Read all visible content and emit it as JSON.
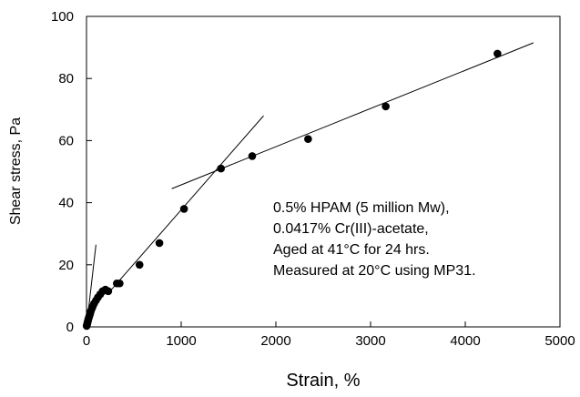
{
  "chart_data": {
    "type": "scatter",
    "xlabel": "Strain, %",
    "ylabel": "Shear stress, Pa",
    "xlim": [
      0,
      5000
    ],
    "ylim": [
      0,
      100
    ],
    "x_ticks": [
      "0",
      "1000",
      "2000",
      "3000",
      "4000",
      "5000"
    ],
    "y_ticks": [
      "0",
      "20",
      "40",
      "60",
      "80",
      "100"
    ],
    "grid": false,
    "legend": "none",
    "series": [
      {
        "marker_color": "#000000",
        "points": [
          {
            "x": 2,
            "y": 0.3
          },
          {
            "x": 5,
            "y": 0.7
          },
          {
            "x": 8,
            "y": 1.0
          },
          {
            "x": 12,
            "y": 1.5
          },
          {
            "x": 16,
            "y": 2.0
          },
          {
            "x": 20,
            "y": 2.5
          },
          {
            "x": 25,
            "y": 3.0
          },
          {
            "x": 30,
            "y": 3.5
          },
          {
            "x": 38,
            "y": 4.2
          },
          {
            "x": 45,
            "y": 5.0
          },
          {
            "x": 55,
            "y": 5.8
          },
          {
            "x": 65,
            "y": 6.5
          },
          {
            "x": 80,
            "y": 7.5
          },
          {
            "x": 100,
            "y": 8.5
          },
          {
            "x": 120,
            "y": 9.5
          },
          {
            "x": 145,
            "y": 10.5
          },
          {
            "x": 170,
            "y": 11.5
          },
          {
            "x": 200,
            "y": 12.0
          },
          {
            "x": 230,
            "y": 11.5
          },
          {
            "x": 320,
            "y": 14.0
          },
          {
            "x": 350,
            "y": 14.0
          },
          {
            "x": 560,
            "y": 20.0
          },
          {
            "x": 770,
            "y": 27.0
          },
          {
            "x": 1030,
            "y": 38.0
          },
          {
            "x": 1420,
            "y": 51.0
          },
          {
            "x": 1750,
            "y": 55.0
          },
          {
            "x": 2340,
            "y": 60.5
          },
          {
            "x": 3160,
            "y": 71.0
          },
          {
            "x": 4340,
            "y": 88.0
          }
        ]
      }
    ],
    "trend_lines": [
      {
        "x1": 0,
        "y1": 0,
        "x2": 100,
        "y2": 26.5
      },
      {
        "x1": 220,
        "y1": 10.5,
        "x2": 1870,
        "y2": 68.0
      },
      {
        "x1": 900,
        "y1": 44.5,
        "x2": 4720,
        "y2": 91.5
      }
    ],
    "annotation": [
      "0.5% HPAM (5 million Mw),",
      "0.0417% Cr(III)-acetate,",
      "Aged at 41°C for 24 hrs.",
      "Measured at 20°C using MP31."
    ]
  }
}
